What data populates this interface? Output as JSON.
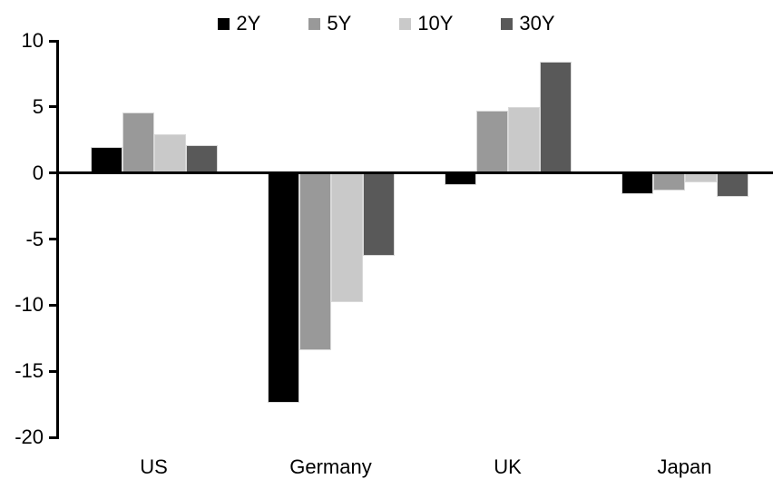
{
  "chart_data": {
    "type": "bar",
    "title": "",
    "categories": [
      "US",
      "Germany",
      "UK",
      "Japan"
    ],
    "series": [
      {
        "name": "2Y",
        "color": "#000000",
        "values": [
          2.0,
          -17.4,
          -0.9,
          -1.6
        ]
      },
      {
        "name": "5Y",
        "color": "#999999",
        "values": [
          4.6,
          -13.4,
          4.7,
          -1.3
        ]
      },
      {
        "name": "10Y",
        "color": "#c9c9c9",
        "values": [
          2.9,
          -9.8,
          5.0,
          -0.7
        ]
      },
      {
        "name": "30Y",
        "color": "#595959",
        "values": [
          2.1,
          -6.3,
          8.4,
          -1.8
        ]
      }
    ],
    "xlabel": "",
    "ylabel": "",
    "ylim": [
      -20,
      10
    ],
    "yticks": [
      10,
      5,
      0,
      -5,
      -10,
      -15,
      -20
    ],
    "legend_position": "top-center",
    "grid": false,
    "axis_color": "#000000",
    "background_color": "#ffffff"
  }
}
